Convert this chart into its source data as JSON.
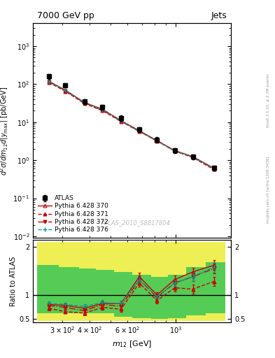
{
  "title": "7000 GeV pp",
  "title_right": "Jets",
  "watermark": "ATLAS_2010_S8817804",
  "right_label": "mcplots.cern.ch [arXiv:1306.3436]",
  "right_label2": "Rivet 3.1.10, ≥ 2.7M events",
  "xlabel": "$m_{12}$ [GeV]",
  "ylabel": "$d^2\\sigma/dm_{12}d|y_{\\mathrm{max}}|$ [pb/GeV]",
  "ylabel_ratio": "Ratio to ATLAS",
  "atlas_x": [
    260,
    310,
    380,
    460,
    560,
    680,
    820,
    990,
    1200,
    1500
  ],
  "atlas_y": [
    160,
    95,
    35,
    25,
    13,
    6.5,
    3.5,
    1.8,
    1.25,
    0.62
  ],
  "atlas_yerr": [
    25,
    12,
    5,
    3.5,
    2.0,
    0.9,
    0.5,
    0.25,
    0.18,
    0.09
  ],
  "py370_x": [
    260,
    310,
    380,
    460,
    560,
    680,
    820,
    990,
    1200,
    1500
  ],
  "py370_y": [
    120,
    70,
    33,
    22,
    11,
    6.0,
    3.3,
    1.8,
    1.25,
    0.62
  ],
  "py371_x": [
    260,
    310,
    380,
    460,
    560,
    680,
    820,
    990,
    1200,
    1500
  ],
  "py371_y": [
    112,
    65,
    31,
    20,
    10.5,
    5.7,
    3.2,
    1.75,
    1.18,
    0.57
  ],
  "py372_x": [
    260,
    310,
    380,
    460,
    560,
    680,
    820,
    990,
    1200,
    1500
  ],
  "py372_y": [
    116,
    68,
    32,
    21,
    10.8,
    5.8,
    3.25,
    1.77,
    1.22,
    0.6
  ],
  "py376_x": [
    260,
    310,
    380,
    460,
    560,
    680,
    820,
    990,
    1200,
    1500
  ],
  "py376_y": [
    118,
    69,
    33,
    21.5,
    11.0,
    5.9,
    3.28,
    1.78,
    1.23,
    0.61
  ],
  "ratio370_x": [
    260,
    310,
    380,
    460,
    560,
    680,
    820,
    990,
    1200,
    1500
  ],
  "ratio370_y": [
    0.8,
    0.78,
    0.72,
    0.82,
    0.82,
    1.38,
    1.0,
    1.32,
    1.48,
    1.62
  ],
  "ratio370_yerr": [
    0.04,
    0.04,
    0.05,
    0.05,
    0.06,
    0.08,
    0.06,
    0.08,
    0.09,
    0.1
  ],
  "ratio371_x": [
    260,
    310,
    380,
    460,
    560,
    680,
    820,
    990,
    1200,
    1500
  ],
  "ratio371_y": [
    0.72,
    0.65,
    0.62,
    0.74,
    0.7,
    1.25,
    0.88,
    1.15,
    1.12,
    1.28
  ],
  "ratio371_yerr": [
    0.04,
    0.04,
    0.05,
    0.05,
    0.06,
    0.08,
    0.06,
    0.08,
    0.09,
    0.1
  ],
  "ratio372_x": [
    260,
    310,
    380,
    460,
    560,
    680,
    820,
    990,
    1200,
    1500
  ],
  "ratio372_y": [
    0.78,
    0.74,
    0.67,
    0.8,
    0.76,
    1.32,
    0.95,
    1.25,
    1.38,
    1.55
  ],
  "ratio372_yerr": [
    0.04,
    0.04,
    0.05,
    0.05,
    0.06,
    0.08,
    0.06,
    0.08,
    0.09,
    0.1
  ],
  "ratio376_x": [
    260,
    310,
    380,
    460,
    560,
    680,
    820,
    990,
    1200,
    1500
  ],
  "ratio376_y": [
    0.82,
    0.8,
    0.76,
    0.84,
    0.82,
    1.32,
    0.96,
    1.25,
    1.38,
    1.58
  ],
  "ratio376_yerr": [
    0.04,
    0.04,
    0.05,
    0.05,
    0.06,
    0.08,
    0.06,
    0.08,
    0.09,
    0.1
  ],
  "band_x_edges": [
    230,
    290,
    360,
    430,
    520,
    630,
    770,
    920,
    1120,
    1380,
    1700
  ],
  "band_yellow_lo": [
    0.45,
    0.45,
    0.45,
    0.45,
    0.45,
    0.45,
    0.45,
    0.45,
    0.45,
    0.45,
    0.45
  ],
  "band_yellow_hi": [
    2.1,
    2.1,
    2.1,
    2.1,
    2.1,
    2.1,
    2.1,
    2.1,
    2.1,
    2.1,
    2.1
  ],
  "band_green_lo": [
    0.62,
    0.62,
    0.62,
    0.62,
    0.55,
    0.52,
    0.5,
    0.52,
    0.58,
    0.62,
    0.68
  ],
  "band_green_hi": [
    1.62,
    1.58,
    1.55,
    1.52,
    1.48,
    1.42,
    1.38,
    1.42,
    1.58,
    1.68,
    1.78
  ],
  "color_370": "#cc0000",
  "color_371": "#cc0000",
  "color_372": "#cc0000",
  "color_376": "#009999",
  "xlim": [
    220,
    1800
  ],
  "ylim_main": [
    0.009,
    4000
  ],
  "ylim_ratio": [
    0.43,
    2.15
  ]
}
